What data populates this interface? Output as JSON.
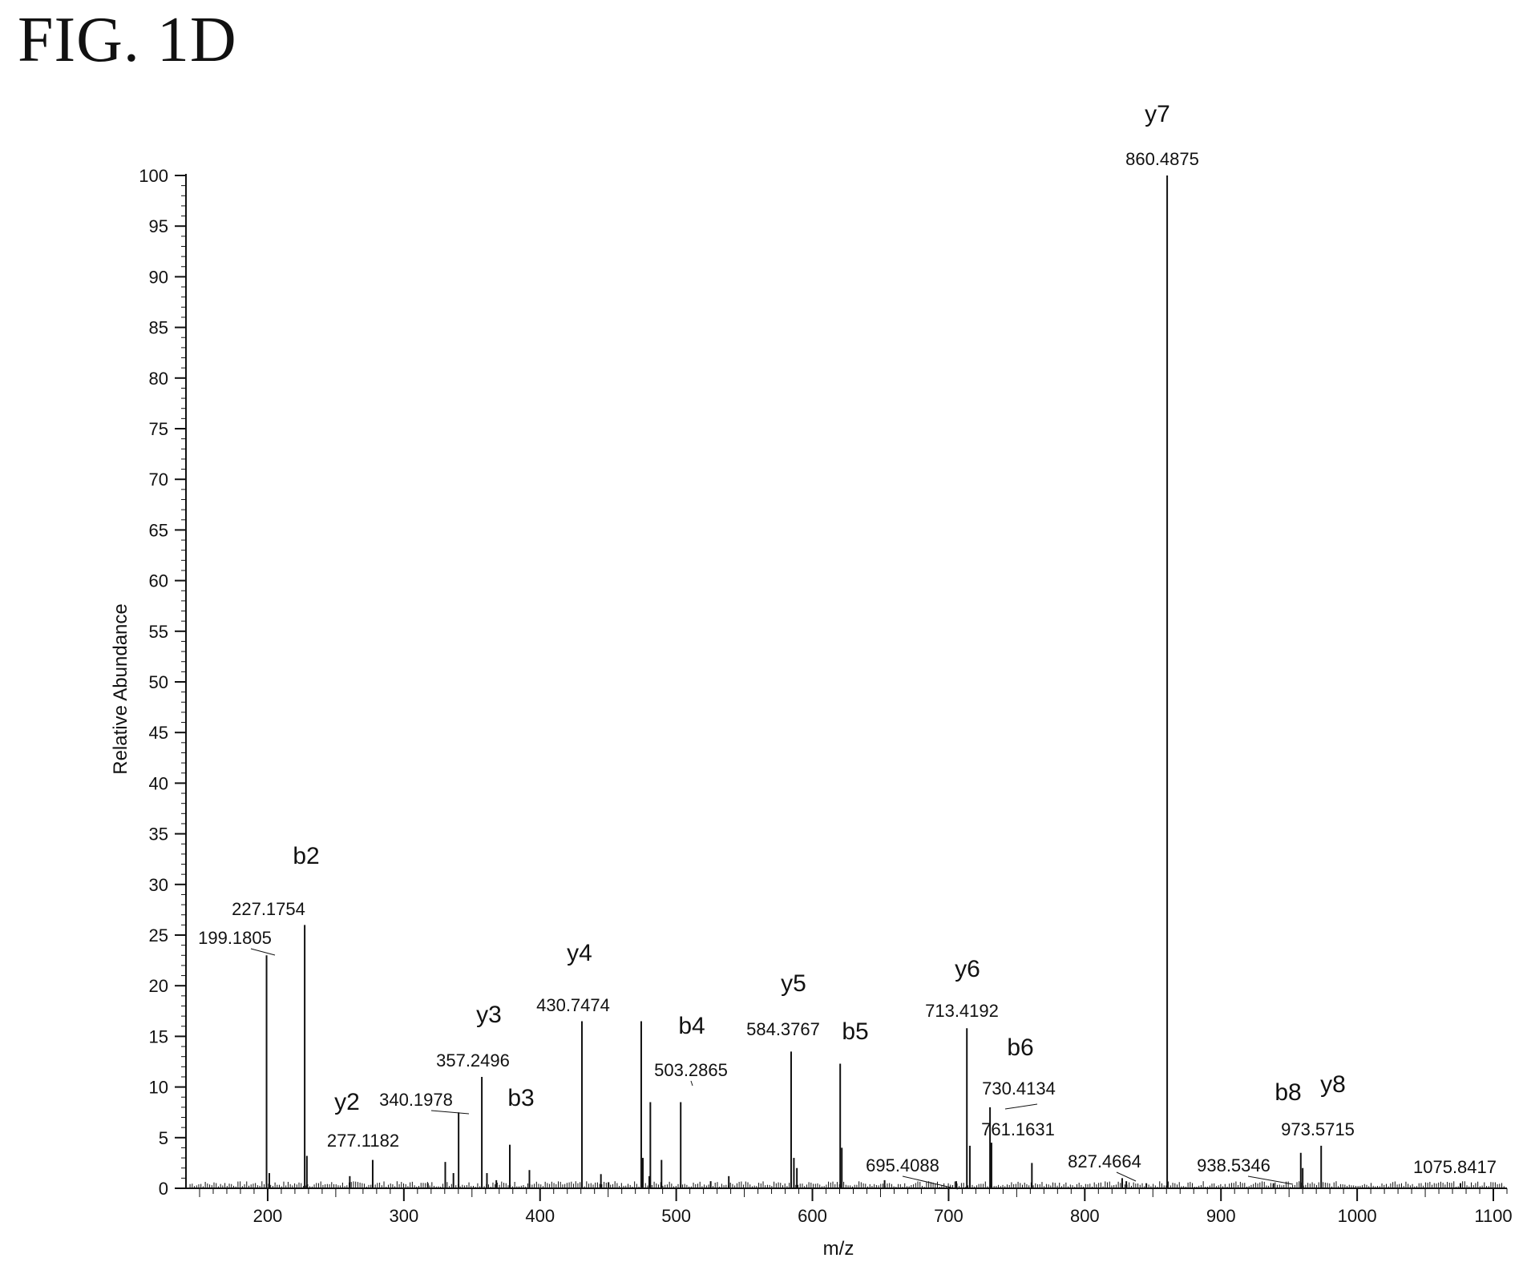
{
  "figure_label": "FIG. 1D",
  "chart_data": {
    "type": "bar",
    "title": "",
    "xlabel": "m/z",
    "ylabel": "Relative Abundance",
    "xlim": [
      140,
      1110
    ],
    "ylim": [
      0,
      100
    ],
    "xticks": [
      200,
      300,
      400,
      500,
      600,
      700,
      800,
      900,
      1000,
      1100
    ],
    "yticks": [
      0,
      5,
      10,
      15,
      20,
      25,
      30,
      35,
      40,
      45,
      50,
      55,
      60,
      65,
      70,
      75,
      80,
      85,
      90,
      95,
      100
    ],
    "grid": false,
    "legend": "none",
    "colors": {
      "line": "#111111",
      "background": "#ffffff"
    },
    "peaks": [
      {
        "mz": 199.1805,
        "ab": 23
      },
      {
        "mz": 227.1754,
        "ab": 26
      },
      {
        "mz": 277.1182,
        "ab": 2.8
      },
      {
        "mz": 340.1978,
        "ab": 7.5
      },
      {
        "mz": 357.2496,
        "ab": 11
      },
      {
        "mz": 430.7474,
        "ab": 16.5
      },
      {
        "mz": 503.2865,
        "ab": 8.5
      },
      {
        "mz": 584.3767,
        "ab": 13.5
      },
      {
        "mz": 713.4192,
        "ab": 15.8
      },
      {
        "mz": 730.4134,
        "ab": 8
      },
      {
        "mz": 761.1631,
        "ab": 2.5
      },
      {
        "mz": 827.4664,
        "ab": 1
      },
      {
        "mz": 860.4875,
        "ab": 100
      },
      {
        "mz": 938.5346,
        "ab": 0.5
      },
      {
        "mz": 973.5715,
        "ab": 4.2
      },
      {
        "mz": 1075.8417,
        "ab": 0.5
      },
      {
        "mz": 474.3,
        "ab": 16.5
      },
      {
        "mz": 475.5,
        "ab": 3
      },
      {
        "mz": 480.2,
        "ab": 1.2
      },
      {
        "mz": 481.0,
        "ab": 8.5
      },
      {
        "mz": 489.2,
        "ab": 2.8
      },
      {
        "mz": 377.8,
        "ab": 4.3
      },
      {
        "mz": 392.2,
        "ab": 1.8
      },
      {
        "mz": 620.4,
        "ab": 12.3
      },
      {
        "mz": 621.6,
        "ab": 4
      },
      {
        "mz": 586.4,
        "ab": 3
      },
      {
        "mz": 588.6,
        "ab": 2
      },
      {
        "mz": 715.6,
        "ab": 4.2
      },
      {
        "mz": 731.5,
        "ab": 4.5
      },
      {
        "mz": 958.6,
        "ab": 3.5
      },
      {
        "mz": 960.0,
        "ab": 2
      },
      {
        "mz": 260.3,
        "ab": 1.2
      },
      {
        "mz": 330.4,
        "ab": 2.6
      },
      {
        "mz": 336.4,
        "ab": 1.5
      },
      {
        "mz": 361.0,
        "ab": 1.5
      },
      {
        "mz": 538.6,
        "ab": 1.2
      },
      {
        "mz": 444.7,
        "ab": 1.4
      },
      {
        "mz": 367.9,
        "ab": 0.8
      },
      {
        "mz": 450.3,
        "ab": 0.6
      },
      {
        "mz": 653.0,
        "ab": 0.8
      },
      {
        "mz": 705.6,
        "ab": 0.7
      },
      {
        "mz": 830.5,
        "ab": 0.7
      },
      {
        "mz": 845.2,
        "ab": 0.5
      },
      {
        "mz": 201.2,
        "ab": 1.5
      },
      {
        "mz": 228.8,
        "ab": 3.2
      },
      {
        "mz": 317.6,
        "ab": 0.5
      },
      {
        "mz": 525.3,
        "ab": 0.7
      }
    ],
    "annotations": [
      {
        "ion": "y7",
        "mz_text": "860.4875",
        "peak_mz": 860.4875,
        "ion_pos": [
          1444,
          152
        ],
        "mz_pos": [
          1450,
          206
        ],
        "leader": []
      },
      {
        "ion": "b2",
        "mz_text": "227.1754",
        "peak_mz": 227.1754,
        "ion_pos": [
          382,
          1078
        ],
        "mz_pos": [
          335,
          1142
        ],
        "leader": []
      },
      {
        "ion": "",
        "mz_text": "199.1805",
        "peak_mz": 199.1805,
        "ion_pos": null,
        "mz_pos": [
          293,
          1178
        ],
        "leader": [
          [
            313,
            1184
          ],
          [
            343,
            1192
          ]
        ]
      },
      {
        "ion": "y4",
        "mz_text": "430.7474",
        "peak_mz": 430.7474,
        "ion_pos": [
          723,
          1199
        ],
        "mz_pos": [
          715,
          1262
        ],
        "leader": []
      },
      {
        "ion": "y3",
        "mz_text": "357.2496",
        "peak_mz": 357.2496,
        "ion_pos": [
          610,
          1276
        ],
        "mz_pos": [
          590,
          1331
        ],
        "leader": []
      },
      {
        "ion": "",
        "mz_text": "340.1978",
        "peak_mz": 340.1978,
        "ion_pos": null,
        "mz_pos": [
          519,
          1380
        ],
        "leader": [
          [
            538,
            1386
          ],
          [
            585,
            1390
          ]
        ]
      },
      {
        "ion": "y2",
        "mz_text": "277.1182",
        "peak_mz": 277.1182,
        "ion_pos": [
          433,
          1385
        ],
        "mz_pos": [
          453,
          1431
        ],
        "leader": []
      },
      {
        "ion": "b3",
        "mz_text": "",
        "peak_mz": 377.8,
        "ion_pos": [
          650,
          1380
        ],
        "mz_pos": null,
        "leader": []
      },
      {
        "ion": "b4",
        "mz_text": "503.2865",
        "peak_mz": 503.2865,
        "ion_pos": [
          863,
          1290
        ],
        "mz_pos": [
          862,
          1343
        ],
        "leader": [
          [
            862,
            1349
          ],
          [
            864,
            1355
          ]
        ]
      },
      {
        "ion": "y5",
        "mz_text": "584.3767",
        "peak_mz": 584.3767,
        "ion_pos": [
          990,
          1237
        ],
        "mz_pos": [
          977,
          1292
        ],
        "leader": []
      },
      {
        "ion": "b5",
        "mz_text": "",
        "peak_mz": 620.4,
        "ion_pos": [
          1067,
          1297
        ],
        "mz_pos": null,
        "leader": []
      },
      {
        "ion": "y6",
        "mz_text": "713.4192",
        "peak_mz": 713.4192,
        "ion_pos": [
          1207,
          1219
        ],
        "mz_pos": [
          1200,
          1269
        ],
        "leader": []
      },
      {
        "ion": "b6",
        "mz_text": "730.4134",
        "peak_mz": 730.4134,
        "ion_pos": [
          1273,
          1317
        ],
        "mz_pos": [
          1271,
          1366
        ],
        "leader": [
          [
            1254,
            1384
          ],
          [
            1294,
            1378
          ]
        ]
      },
      {
        "ion": "",
        "mz_text": "761.1631",
        "peak_mz": 761.1631,
        "ion_pos": null,
        "mz_pos": [
          1270,
          1417
        ],
        "leader": []
      },
      {
        "ion": "",
        "mz_text": "695.4088",
        "peak_mz": 695.4088,
        "ion_pos": null,
        "mz_pos": [
          1126,
          1462
        ],
        "leader": [
          [
            1126,
            1468
          ],
          [
            1195,
            1484
          ]
        ]
      },
      {
        "ion": "",
        "mz_text": "827.4664",
        "peak_mz": 827.4664,
        "ion_pos": null,
        "mz_pos": [
          1378,
          1457
        ],
        "leader": [
          [
            1393,
            1463
          ],
          [
            1417,
            1474
          ]
        ]
      },
      {
        "ion": "",
        "mz_text": "938.5346",
        "peak_mz": 938.5346,
        "ion_pos": null,
        "mz_pos": [
          1539,
          1462
        ],
        "leader": [
          [
            1557,
            1468
          ],
          [
            1613,
            1478
          ]
        ]
      },
      {
        "ion": "b8",
        "mz_text": "",
        "peak_mz": 958.6,
        "ion_pos": [
          1607,
          1373
        ],
        "mz_pos": null,
        "leader": []
      },
      {
        "ion": "y8",
        "mz_text": "973.5715",
        "peak_mz": 973.5715,
        "ion_pos": [
          1663,
          1363
        ],
        "mz_pos": [
          1644,
          1417
        ],
        "leader": []
      },
      {
        "ion": "",
        "mz_text": "1075.8417",
        "peak_mz": 1075.8417,
        "ion_pos": null,
        "mz_pos": [
          1815,
          1464
        ],
        "leader": []
      }
    ]
  }
}
